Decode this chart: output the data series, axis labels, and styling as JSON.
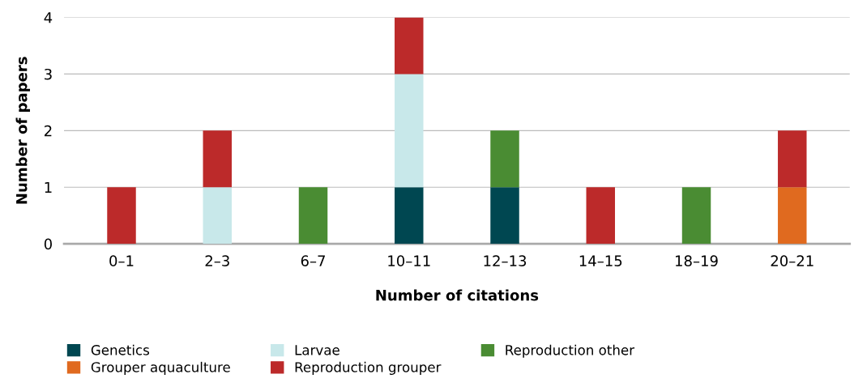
{
  "chart_data": {
    "type": "bar",
    "stacked": true,
    "xlabel": "Number of citations",
    "ylabel": "Number of papers",
    "categories": [
      "0–1",
      "2–3",
      "6–7",
      "10–11",
      "12–13",
      "14–15",
      "18–19",
      "20–21"
    ],
    "series": [
      {
        "name": "Genetics",
        "color": "#004751",
        "values": [
          0,
          0,
          0,
          1,
          1,
          0,
          0,
          0
        ]
      },
      {
        "name": "Grouper aquaculture",
        "color": "#e06a1f",
        "values": [
          0,
          0,
          0,
          0,
          0,
          0,
          0,
          1
        ]
      },
      {
        "name": "Larvae",
        "color": "#c8e8ea",
        "values": [
          0,
          1,
          0,
          2,
          0,
          0,
          0,
          0
        ]
      },
      {
        "name": "Reproduction grouper",
        "color": "#bc2a2a",
        "values": [
          1,
          1,
          0,
          1,
          0,
          1,
          0,
          1
        ]
      },
      {
        "name": "Reproduction other",
        "color": "#4a8c33",
        "values": [
          0,
          0,
          1,
          0,
          1,
          0,
          1,
          0
        ]
      }
    ],
    "ylim": [
      0,
      4
    ],
    "yticks": [
      0,
      1,
      2,
      3,
      4
    ],
    "grid": "y",
    "legend": "bottom"
  }
}
